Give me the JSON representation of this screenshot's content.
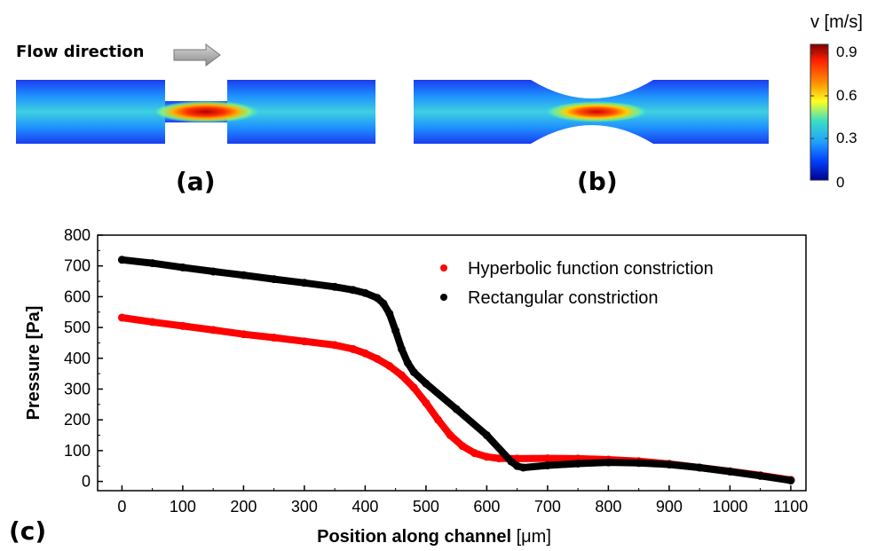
{
  "top_panels": {
    "flow_label": "Flow direction",
    "panel_a_label": "(a)",
    "panel_b_label": "(b)",
    "panel_c_label": "(c)"
  },
  "colorbar": {
    "title": "v [m/s]",
    "ticks": [
      "0.9",
      "0.6",
      "0.3",
      "0"
    ],
    "colors": [
      "#800000",
      "#ff2000",
      "#ff8c00",
      "#ffff20",
      "#3ce0c0",
      "#1fa0ff",
      "#0040ff",
      "#00008f"
    ]
  },
  "chart_data": {
    "type": "scatter",
    "xlabel_main": "Position along channel ",
    "xlabel_unit": "[μm]",
    "ylabel": "Pressure [Pa]",
    "xlim": [
      -40,
      1125
    ],
    "ylim": [
      -30,
      800
    ],
    "xticks": [
      0,
      100,
      200,
      300,
      400,
      500,
      600,
      700,
      800,
      900,
      1000,
      1100
    ],
    "yticks": [
      0,
      100,
      200,
      300,
      400,
      500,
      600,
      700,
      800
    ],
    "legend_position": "top-right",
    "series": [
      {
        "name": "Hyperbolic function constriction",
        "color": "#ff0000",
        "x": [
          0,
          50,
          100,
          150,
          200,
          250,
          300,
          350,
          380,
          400,
          420,
          440,
          460,
          480,
          500,
          520,
          540,
          560,
          580,
          600,
          620,
          650,
          700,
          750,
          800,
          850,
          900,
          950,
          1000,
          1050,
          1100
        ],
        "y": [
          532,
          518,
          505,
          492,
          478,
          467,
          455,
          443,
          430,
          416,
          398,
          375,
          345,
          305,
          255,
          200,
          150,
          115,
          92,
          80,
          75,
          74,
          75,
          74,
          71,
          66,
          57,
          45,
          33,
          20,
          5
        ]
      },
      {
        "name": "Rectangular constriction",
        "color": "#000000",
        "x": [
          0,
          50,
          100,
          150,
          200,
          250,
          300,
          350,
          380,
          400,
          420,
          430,
          440,
          450,
          460,
          470,
          480,
          500,
          550,
          600,
          640,
          650,
          660,
          700,
          750,
          800,
          850,
          900,
          950,
          1000,
          1050,
          1100
        ],
        "y": [
          720,
          709,
          695,
          682,
          670,
          657,
          645,
          632,
          622,
          612,
          596,
          578,
          545,
          490,
          430,
          385,
          355,
          318,
          235,
          150,
          65,
          50,
          45,
          52,
          58,
          62,
          60,
          55,
          45,
          32,
          18,
          3
        ]
      }
    ]
  }
}
